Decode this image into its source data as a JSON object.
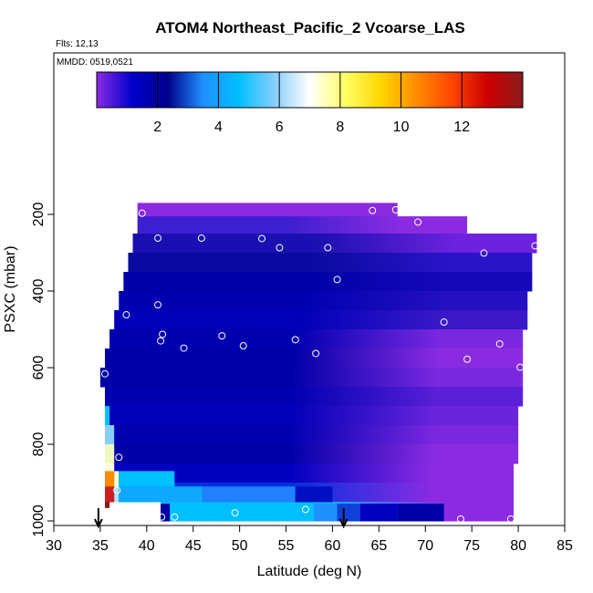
{
  "title": "ATOM4 Northeast_Pacific_2 Vcoarse_LAS",
  "flights_label": "Flts: 12,13",
  "date_label": "MMDD: 0519,0521",
  "chart_data": {
    "type": "heatmap",
    "xlabel": "Latitude (deg N)",
    "ylabel": "PSXC (mbar)",
    "xlim": [
      30,
      85
    ],
    "ylim": [
      1000,
      0
    ],
    "x_ticks": [
      30,
      35,
      40,
      45,
      50,
      55,
      60,
      65,
      70,
      75,
      80,
      85
    ],
    "y_ticks": [
      200,
      400,
      600,
      800,
      1000
    ],
    "colorbar": {
      "min": 0,
      "max": 14,
      "ticks": [
        2,
        4,
        6,
        8,
        10,
        12
      ],
      "colors": [
        "#8a2be2",
        "#0000cd",
        "#00008b",
        "#1e90ff",
        "#00bfff",
        "#87cefa",
        "#ffffff",
        "#ffff66",
        "#ffd700",
        "#ff8c00",
        "#ff4500",
        "#cc0000",
        "#8b1a1a"
      ]
    },
    "profile_markers_lat": [
      34.8,
      61.2
    ],
    "bands": [
      {
        "p0": 170,
        "p1": 205,
        "lat0": 39.0,
        "lat1": 67.0,
        "color": "#8a2be2",
        "left": "#8a2be2"
      },
      {
        "p0": 205,
        "p1": 250,
        "lat0": 39.0,
        "lat1": 74.5,
        "color": "#8a2be2",
        "left": "#3c1fd0"
      },
      {
        "p0": 250,
        "p1": 300,
        "lat0": 38.5,
        "lat1": 82.0,
        "color": "#6c22de",
        "left": "#1a0fb0"
      },
      {
        "p0": 300,
        "p1": 350,
        "lat0": 38.0,
        "lat1": 81.5,
        "color": "#2a14c8",
        "left": "#0a0aa0"
      },
      {
        "p0": 350,
        "p1": 400,
        "lat0": 37.5,
        "lat1": 81.5,
        "color": "#1608b8",
        "left": "#0000a8"
      },
      {
        "p0": 400,
        "p1": 450,
        "lat0": 37.0,
        "lat1": 81.0,
        "color": "#2410c0",
        "left": "#0000b0"
      },
      {
        "p0": 450,
        "p1": 500,
        "lat0": 36.5,
        "lat1": 81.0,
        "color": "#3a18c8",
        "left": "#0000b8"
      },
      {
        "p0": 500,
        "p1": 550,
        "lat0": 36.0,
        "lat1": 80.5,
        "color": "#7a28e0",
        "left": "#0000b0"
      },
      {
        "p0": 550,
        "p1": 600,
        "lat0": 35.5,
        "lat1": 80.5,
        "color": "#8a2be2",
        "left": "#0000a8"
      },
      {
        "p0": 600,
        "p1": 650,
        "lat0": 35.0,
        "lat1": 80.5,
        "color": "#7a28e0",
        "left": "#0000a8"
      },
      {
        "p0": 650,
        "p1": 700,
        "lat0": 35.5,
        "lat1": 80.5,
        "color": "#5a20d8",
        "left": "#0000b0"
      },
      {
        "p0": 700,
        "p1": 750,
        "lat0": 35.5,
        "lat1": 80.0,
        "color": "#6a24dc",
        "left": "#0000b8"
      },
      {
        "p0": 750,
        "p1": 800,
        "lat0": 35.5,
        "lat1": 80.0,
        "color": "#7a28e0",
        "left": "#0000b0"
      },
      {
        "p0": 800,
        "p1": 850,
        "lat0": 35.5,
        "lat1": 80.0,
        "color": "#8a2be2",
        "left": "#0000a8"
      },
      {
        "p0": 850,
        "p1": 900,
        "lat0": 35.5,
        "lat1": 79.5,
        "color": "#8a2be2",
        "left": "#0000c0"
      },
      {
        "p0": 900,
        "p1": 950,
        "lat0": 35.5,
        "lat1": 79.5,
        "color": "#8a2be2",
        "left": "#0030e0"
      },
      {
        "p0": 950,
        "p1": 1000,
        "lat0": 41.5,
        "lat1": 79.5,
        "color": "#8a2be2",
        "left": "#00bfff"
      }
    ],
    "surface_cells": [
      {
        "p0": 700,
        "p1": 750,
        "lat0": 35.5,
        "lat1": 36.0,
        "color": "#00bfff"
      },
      {
        "p0": 750,
        "p1": 800,
        "lat0": 35.5,
        "lat1": 36.5,
        "color": "#87cefa"
      },
      {
        "p0": 800,
        "p1": 850,
        "lat0": 35.5,
        "lat1": 36.5,
        "color": "#f0f8c0"
      },
      {
        "p0": 850,
        "p1": 870,
        "lat0": 35.5,
        "lat1": 36.5,
        "color": "#ffffe0"
      },
      {
        "p0": 870,
        "p1": 910,
        "lat0": 35.5,
        "lat1": 36.5,
        "color": "#ff8c00"
      },
      {
        "p0": 870,
        "p1": 910,
        "lat0": 36.5,
        "lat1": 37.0,
        "color": "#ffffcc"
      },
      {
        "p0": 910,
        "p1": 950,
        "lat0": 35.5,
        "lat1": 36.5,
        "color": "#cc2020"
      },
      {
        "p0": 910,
        "p1": 950,
        "lat0": 36.5,
        "lat1": 37.0,
        "color": "#b0e0ff"
      },
      {
        "p0": 950,
        "p1": 965,
        "lat0": 35.5,
        "lat1": 36.0,
        "color": "#8b1a1a"
      },
      {
        "p0": 870,
        "p1": 910,
        "lat0": 37.0,
        "lat1": 43.0,
        "color": "#00c0ff"
      },
      {
        "p0": 910,
        "p1": 950,
        "lat0": 37.0,
        "lat1": 46.0,
        "color": "#10a8ff"
      },
      {
        "p0": 910,
        "p1": 950,
        "lat0": 46.0,
        "lat1": 56.0,
        "color": "#2080ff"
      },
      {
        "p0": 910,
        "p1": 950,
        "lat0": 56.0,
        "lat1": 60.0,
        "color": "#0010c0"
      },
      {
        "p0": 955,
        "p1": 1000,
        "lat0": 41.5,
        "lat1": 42.5,
        "color": "#0000a0"
      },
      {
        "p0": 955,
        "p1": 1000,
        "lat0": 42.5,
        "lat1": 58.0,
        "color": "#00bfff"
      },
      {
        "p0": 955,
        "p1": 1000,
        "lat0": 58.0,
        "lat1": 60.5,
        "color": "#1e90ff"
      },
      {
        "p0": 955,
        "p1": 1000,
        "lat0": 60.5,
        "lat1": 63.0,
        "color": "#1040d8"
      },
      {
        "p0": 955,
        "p1": 1000,
        "lat0": 63.0,
        "lat1": 67.0,
        "color": "#0000c0"
      },
      {
        "p0": 955,
        "p1": 1000,
        "lat0": 67.0,
        "lat1": 72.0,
        "color": "#0000a8"
      }
    ],
    "points": [
      {
        "lat": 39.5,
        "p": 197
      },
      {
        "lat": 64.3,
        "p": 190
      },
      {
        "lat": 66.8,
        "p": 188
      },
      {
        "lat": 69.2,
        "p": 220
      },
      {
        "lat": 41.2,
        "p": 262
      },
      {
        "lat": 45.9,
        "p": 262
      },
      {
        "lat": 52.4,
        "p": 263
      },
      {
        "lat": 54.3,
        "p": 287
      },
      {
        "lat": 59.5,
        "p": 287
      },
      {
        "lat": 76.3,
        "p": 301
      },
      {
        "lat": 81.8,
        "p": 282
      },
      {
        "lat": 60.5,
        "p": 370
      },
      {
        "lat": 41.2,
        "p": 436
      },
      {
        "lat": 37.8,
        "p": 462
      },
      {
        "lat": 72.0,
        "p": 481
      },
      {
        "lat": 41.7,
        "p": 513
      },
      {
        "lat": 41.5,
        "p": 530
      },
      {
        "lat": 48.1,
        "p": 517
      },
      {
        "lat": 44.0,
        "p": 549
      },
      {
        "lat": 50.4,
        "p": 543
      },
      {
        "lat": 56.0,
        "p": 527
      },
      {
        "lat": 58.2,
        "p": 563
      },
      {
        "lat": 78.0,
        "p": 538
      },
      {
        "lat": 74.5,
        "p": 578
      },
      {
        "lat": 80.2,
        "p": 599
      },
      {
        "lat": 35.5,
        "p": 616
      },
      {
        "lat": 37.0,
        "p": 834
      },
      {
        "lat": 36.8,
        "p": 920
      },
      {
        "lat": 41.6,
        "p": 990
      },
      {
        "lat": 43.0,
        "p": 990
      },
      {
        "lat": 49.5,
        "p": 979
      },
      {
        "lat": 57.1,
        "p": 970
      },
      {
        "lat": 73.8,
        "p": 995
      },
      {
        "lat": 79.2,
        "p": 995
      }
    ]
  }
}
